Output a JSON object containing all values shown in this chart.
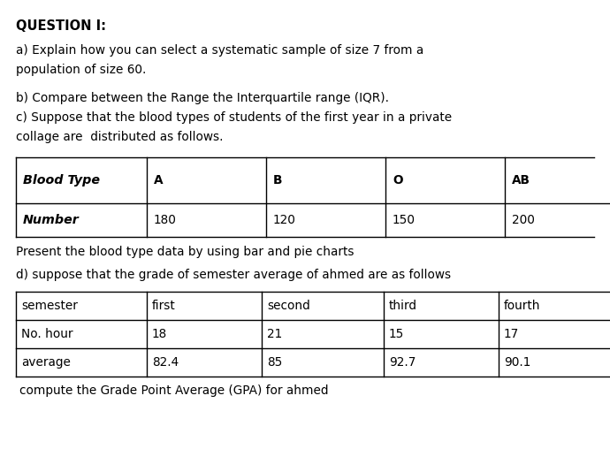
{
  "title": "QUESTION I:",
  "lines": [
    "a) Explain how you can select a systematic sample of size 7 from a",
    "population of size 60.",
    "b) Compare between the Range the Interquartile range (IQR).",
    "c) Suppose that the blood types of students of the first year in a private",
    "collage are  distributed as follows."
  ],
  "table1_headers": [
    "Blood Type",
    "A",
    "B",
    "O",
    "AB"
  ],
  "table1_row": [
    "Number",
    "180",
    "120",
    "150",
    "200"
  ],
  "table1_note": "Present the blood type data by using bar and pie charts",
  "table2_intro": "d) suppose that the grade of semester average of ahmed are as follows",
  "table2_rows": [
    [
      "semester",
      "first",
      "second",
      "third",
      "fourth"
    ],
    [
      "No. hour",
      "18",
      "21",
      "15",
      "17"
    ],
    [
      "average",
      "82.4",
      "85",
      "92.7",
      "90.1"
    ]
  ],
  "table2_note": "compute the Grade Point Average (GPA) for ahmed",
  "bg_color": "#ffffff",
  "text_color": "#000000",
  "font_size_title": 10.5,
  "font_size_body": 9.8
}
